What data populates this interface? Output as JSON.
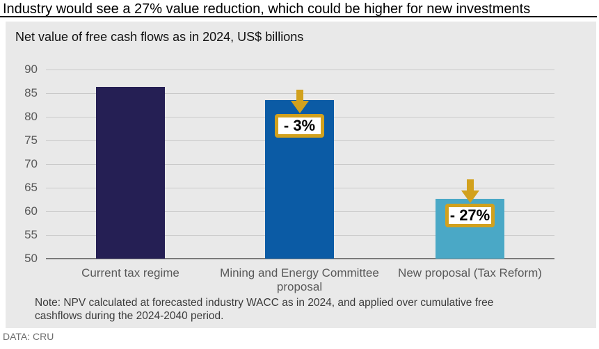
{
  "page": {
    "title": "Industry would see a 27% value reduction, which could be higher for new investments",
    "footer": "DATA: CRU"
  },
  "chart_data": {
    "type": "bar",
    "title": "Net value of free cash flows as in 2024, US$ billions",
    "categories": [
      "Current tax regime",
      "Mining and Energy Committee proposal",
      "New proposal (Tax Reform)"
    ],
    "values": [
      86.3,
      83.5,
      62.7
    ],
    "bar_colors": [
      "#251f54",
      "#0b5ba5",
      "#4aa8c6"
    ],
    "annotations": [
      {
        "bar_index": 1,
        "label": "- 3%"
      },
      {
        "bar_index": 2,
        "label": "- 27%"
      }
    ],
    "accent_color": "#d2a11d",
    "ylim": [
      50,
      90
    ],
    "ytick_step": 5,
    "grid": true,
    "legend": "none",
    "xlabel": "",
    "ylabel": "",
    "note": "Note: NPV calculated at forecasted industry WACC as in 2024, and applied over cumulative free cashflows during the 2024-2040 period."
  }
}
